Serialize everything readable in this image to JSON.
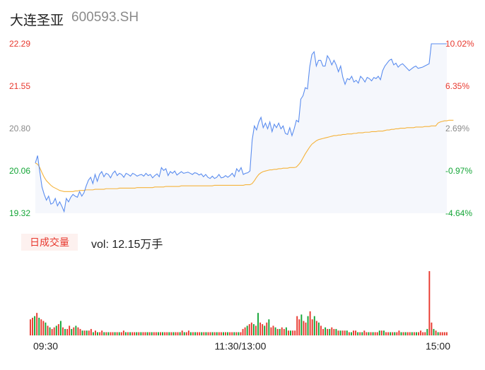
{
  "header": {
    "name": "大连圣亚",
    "code": "600593.SH"
  },
  "volume_panel": {
    "tab_label": "日成交量",
    "vol_prefix": "vol: ",
    "vol_value": "12.15万手"
  },
  "colors": {
    "up": "#e8382e",
    "down": "#13a536",
    "neutral": "#8a8a8a",
    "price_line": "#5b8def",
    "avg_line": "#f5b33b",
    "area_fill": "#f5f7fc"
  },
  "chart_data": [
    {
      "type": "line",
      "title": "",
      "y_left_ticks": [
        "22.29",
        "21.55",
        "20.80",
        "20.06",
        "19.32"
      ],
      "y_right_ticks": [
        "10.02%",
        "6.35%",
        "2.69%",
        "-0.97%",
        "-4.64%"
      ],
      "ylim": [
        19.32,
        22.29
      ],
      "x_ticks": [
        "09:30",
        "11:30/13:00",
        "15:00"
      ],
      "series": [
        {
          "kind": "price",
          "values": [
            20.2,
            20.33,
            20.05,
            19.78,
            19.65,
            19.55,
            19.62,
            19.48,
            19.5,
            19.58,
            19.45,
            19.52,
            19.44,
            19.35,
            19.58,
            19.52,
            19.6,
            19.65,
            19.62,
            19.6,
            19.7,
            19.62,
            19.68,
            19.8,
            19.9,
            19.95,
            19.84,
            20.0,
            19.88,
            20.0,
            20.05,
            19.96,
            20.02,
            20.0,
            19.94,
            20.02,
            20.06,
            19.98,
            20.02,
            20.0,
            19.95,
            20.02,
            20.0,
            19.97,
            20.02,
            20.0,
            19.97,
            19.99,
            20.0,
            19.97,
            20.02,
            19.98,
            20.0,
            19.94,
            19.98,
            20.01,
            19.96,
            20.12,
            20.07,
            20.1,
            19.98,
            20.05,
            20.02,
            20.06,
            19.99,
            20.02,
            20.05,
            20.02,
            20.03,
            20.04,
            20.02,
            20.0,
            20.03,
            20.02,
            19.99,
            20.01,
            19.96,
            20.0,
            19.95,
            19.93,
            19.97,
            19.93,
            19.95,
            20.0,
            19.94,
            19.95,
            19.98,
            19.95,
            19.98,
            20.02,
            19.96,
            20.1,
            20.05,
            20.12,
            20.0,
            20.02,
            20.03,
            20.06,
            20.6,
            20.85,
            20.78,
            20.92,
            21.0,
            20.82,
            20.9,
            20.8,
            20.92,
            20.75,
            20.88,
            20.82,
            20.9,
            20.8,
            20.85,
            20.72,
            20.7,
            20.82,
            20.68,
            20.8,
            20.95,
            20.92,
            21.32,
            21.38,
            21.52,
            21.5,
            21.88,
            22.1,
            22.15,
            21.9,
            22.0,
            22.0,
            21.9,
            21.9,
            22.08,
            22.02,
            21.92,
            22.0,
            21.92,
            21.8,
            21.9,
            21.7,
            21.58,
            21.68,
            21.66,
            21.72,
            21.62,
            21.65,
            21.6,
            21.72,
            21.68,
            21.62,
            21.7,
            21.68,
            21.64,
            21.7,
            21.68,
            21.72,
            21.66,
            21.82,
            21.9,
            21.95,
            22.0,
            22.02,
            21.92,
            21.95,
            21.88,
            21.92,
            21.94,
            21.9,
            21.86,
            21.82,
            21.85,
            21.88,
            21.9,
            21.86,
            21.87,
            21.88,
            21.9,
            21.92,
            21.94,
            22.29,
            22.29,
            22.29,
            22.29,
            22.29,
            22.29,
            22.29,
            22.29
          ]
        },
        {
          "kind": "average",
          "values": [
            20.2,
            20.18,
            20.12,
            20.03,
            19.95,
            19.89,
            19.85,
            19.81,
            19.78,
            19.76,
            19.74,
            19.72,
            19.71,
            19.7,
            19.7,
            19.7,
            19.7,
            19.7,
            19.71,
            19.71,
            19.72,
            19.72,
            19.72,
            19.73,
            19.73,
            19.73,
            19.73,
            19.74,
            19.74,
            19.74,
            19.74,
            19.74,
            19.75,
            19.75,
            19.75,
            19.75,
            19.75,
            19.75,
            19.76,
            19.76,
            19.76,
            19.76,
            19.76,
            19.76,
            19.76,
            19.76,
            19.77,
            19.77,
            19.77,
            19.77,
            19.77,
            19.77,
            19.77,
            19.77,
            19.78,
            19.78,
            19.78,
            19.78,
            19.78,
            19.79,
            19.79,
            19.79,
            19.79,
            19.79,
            19.79,
            19.79,
            19.8,
            19.8,
            19.8,
            19.8,
            19.8,
            19.8,
            19.8,
            19.8,
            19.8,
            19.8,
            19.8,
            19.8,
            19.8,
            19.8,
            19.8,
            19.81,
            19.81,
            19.81,
            19.81,
            19.81,
            19.81,
            19.81,
            19.81,
            19.81,
            19.81,
            19.81,
            19.81,
            19.81,
            19.81,
            19.82,
            19.82,
            19.82,
            19.84,
            19.89,
            19.95,
            20.0,
            20.03,
            20.05,
            20.06,
            20.07,
            20.08,
            20.08,
            20.09,
            20.09,
            20.1,
            20.1,
            20.11,
            20.11,
            20.11,
            20.12,
            20.12,
            20.12,
            20.13,
            20.17,
            20.22,
            20.29,
            20.36,
            20.42,
            20.48,
            20.53,
            20.56,
            20.59,
            20.61,
            20.62,
            20.63,
            20.64,
            20.65,
            20.66,
            20.67,
            20.68,
            20.68,
            20.69,
            20.69,
            20.7,
            20.7,
            20.71,
            20.71,
            20.71,
            20.72,
            20.72,
            20.73,
            20.73,
            20.73,
            20.74,
            20.74,
            20.74,
            20.75,
            20.75,
            20.75,
            20.76,
            20.76,
            20.76,
            20.77,
            20.78,
            20.78,
            20.79,
            20.79,
            20.8,
            20.8,
            20.81,
            20.81,
            20.81,
            20.82,
            20.82,
            20.82,
            20.82,
            20.83,
            20.83,
            20.83,
            20.83,
            20.84,
            20.84,
            20.84,
            20.85,
            20.85,
            20.85,
            20.9,
            20.92,
            20.93,
            20.94,
            20.94,
            20.95,
            20.95,
            20.95
          ]
        }
      ]
    },
    {
      "type": "bar",
      "title": "",
      "series": [
        {
          "name": "",
          "values": [
            10,
            11,
            12,
            14,
            11,
            10,
            9,
            8,
            6,
            5,
            4,
            5,
            6,
            7,
            9,
            5,
            4,
            4,
            6,
            4,
            5,
            6,
            5,
            4,
            3,
            3,
            3,
            3,
            4,
            2,
            3,
            2,
            2,
            3,
            2,
            2,
            2,
            2,
            2,
            2,
            2,
            2,
            2,
            3,
            2,
            2,
            2,
            2,
            2,
            2,
            2,
            2,
            2,
            2,
            2,
            2,
            2,
            2,
            2,
            2,
            2,
            2,
            2,
            2,
            2,
            2,
            2,
            2,
            2,
            2,
            3,
            2,
            2,
            3,
            2,
            2,
            2,
            2,
            2,
            2,
            2,
            2,
            2,
            2,
            2,
            2,
            2,
            2,
            2,
            2,
            2,
            2,
            2,
            2,
            2,
            2,
            2,
            2,
            4,
            5,
            6,
            7,
            8,
            7,
            6,
            14,
            8,
            7,
            6,
            8,
            10,
            5,
            6,
            5,
            4,
            4,
            5,
            4,
            5,
            3,
            3,
            3,
            3,
            12,
            10,
            13,
            9,
            8,
            12,
            15,
            10,
            12,
            9,
            8,
            6,
            4,
            5,
            4,
            4,
            5,
            4,
            4,
            3,
            3,
            3,
            3,
            3,
            2,
            2,
            3,
            3,
            2,
            2,
            2,
            3,
            2,
            2,
            2,
            2,
            2,
            2,
            3,
            3,
            3,
            2,
            2,
            2,
            2,
            2,
            2,
            3,
            2,
            2,
            2,
            2,
            2,
            2,
            2,
            2,
            2,
            3,
            2,
            2,
            4,
            40,
            8,
            4,
            3,
            2,
            2,
            2,
            2,
            2
          ]
        }
      ],
      "colors_sequence": [
        "up",
        "up",
        "down",
        "up",
        "down",
        "up",
        "up",
        "down",
        "up",
        "down",
        "up",
        "up",
        "down",
        "up",
        "down",
        "up",
        "down",
        "up",
        "up",
        "down",
        "up",
        "down",
        "up",
        "up",
        "down",
        "up",
        "down",
        "up",
        "up",
        "down",
        "up",
        "down",
        "up",
        "up",
        "down",
        "up",
        "down",
        "up",
        "up",
        "down",
        "up",
        "down",
        "up",
        "up",
        "down",
        "up",
        "down",
        "up",
        "up",
        "down",
        "up",
        "down",
        "up",
        "up",
        "down",
        "up",
        "down",
        "up",
        "up",
        "down",
        "up",
        "down",
        "up",
        "up",
        "down",
        "up",
        "down",
        "up",
        "up",
        "down",
        "up",
        "down",
        "up",
        "up",
        "down",
        "up",
        "down",
        "up",
        "up",
        "down",
        "up",
        "down",
        "up",
        "up",
        "down",
        "up",
        "down",
        "up",
        "up",
        "down",
        "up",
        "down",
        "up",
        "up",
        "down",
        "up",
        "down",
        "up",
        "up",
        "up",
        "down",
        "up",
        "up",
        "down",
        "up",
        "down",
        "up",
        "up",
        "down",
        "up",
        "down",
        "up",
        "up",
        "down",
        "up",
        "down",
        "up",
        "up",
        "down",
        "up",
        "down",
        "up",
        "up",
        "up",
        "up",
        "down",
        "up",
        "up",
        "down",
        "up",
        "up",
        "down",
        "up",
        "down",
        "up",
        "up",
        "down",
        "up",
        "down",
        "up",
        "up",
        "down",
        "up",
        "down",
        "up",
        "up",
        "down",
        "up",
        "down",
        "up",
        "up",
        "down",
        "up",
        "down",
        "up",
        "up",
        "down",
        "up",
        "down",
        "up",
        "up",
        "down",
        "up",
        "down",
        "up",
        "up",
        "down",
        "up",
        "down",
        "up",
        "up",
        "down",
        "up",
        "down",
        "up",
        "up",
        "down",
        "up",
        "down",
        "up",
        "up",
        "up",
        "up",
        "down",
        "up",
        "up",
        "down",
        "up",
        "down",
        "up"
      ]
    }
  ]
}
